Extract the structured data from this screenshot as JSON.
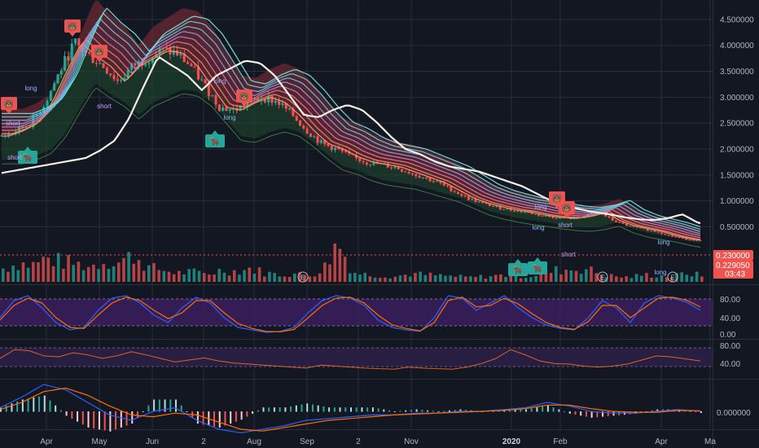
{
  "chart_data": {
    "type": "candlestick",
    "price_axis": {
      "ticks": [
        "4.500000",
        "4.000000",
        "3.500000",
        "3.000000",
        "2.500000",
        "2.000000",
        "1.500000",
        "1.000000",
        "0.500000"
      ],
      "tick_values": [
        4.5,
        4.0,
        3.5,
        3.0,
        2.5,
        2.0,
        1.5,
        1.0,
        0.5
      ],
      "ylim": [
        -0.5,
        4.75
      ]
    },
    "price_labels": {
      "last_price": "0.230000",
      "current_price": "0.229050",
      "countdown": "03:43"
    },
    "x_axis": {
      "labels": [
        "Apr",
        "May",
        "Jun",
        "2",
        "Aug",
        "Sep",
        "2",
        "Nov",
        "2020",
        "Feb",
        "Apr",
        "Ma"
      ],
      "bold_labels": [
        "2020"
      ]
    },
    "close_series": [
      2.25,
      2.35,
      2.5,
      2.9,
      3.5,
      4.05,
      3.8,
      3.6,
      3.3,
      3.6,
      3.75,
      3.9,
      3.85,
      3.6,
      3.2,
      2.8,
      2.75,
      2.9,
      3.0,
      2.9,
      2.65,
      2.35,
      2.1,
      2.0,
      1.85,
      1.75,
      1.7,
      1.65,
      1.55,
      1.45,
      1.35,
      1.2,
      1.05,
      0.95,
      0.88,
      0.82,
      0.78,
      0.72,
      0.68,
      0.66,
      0.7,
      0.78,
      0.62,
      0.52,
      0.46,
      0.4,
      0.32,
      0.26,
      0.23
    ],
    "volume_series": [
      30,
      42,
      38,
      52,
      45,
      40,
      34,
      47,
      44,
      60,
      32,
      26,
      20,
      22,
      18,
      26,
      24,
      30,
      20,
      16,
      18,
      14,
      28,
      90,
      22,
      16,
      14,
      12,
      18,
      16,
      14,
      12,
      10,
      12,
      14,
      16,
      12,
      18,
      26,
      28,
      30,
      18,
      12,
      10,
      16,
      14,
      12,
      20,
      14
    ],
    "earnings_markers": [
      "E",
      "E",
      "E"
    ],
    "tags": {
      "bear": "🐻",
      "bull": "🐂",
      "long": "long",
      "short": "short"
    },
    "stoch_axis": {
      "ticks": [
        "80.00",
        "40.00",
        "0.00"
      ]
    },
    "stoch_series": {
      "k": [
        40,
        75,
        85,
        60,
        30,
        15,
        20,
        55,
        80,
        85,
        70,
        45,
        30,
        60,
        82,
        70,
        40,
        20,
        15,
        10,
        12,
        20,
        50,
        75,
        85,
        80,
        65,
        35,
        20,
        15,
        12,
        40,
        85,
        80,
        55,
        70,
        85,
        60,
        40,
        25,
        18,
        15,
        40,
        75,
        60,
        30,
        70,
        85,
        80,
        72,
        55
      ],
      "d": [
        35,
        65,
        80,
        70,
        40,
        20,
        18,
        45,
        70,
        82,
        75,
        55,
        38,
        50,
        75,
        75,
        50,
        28,
        18,
        12,
        11,
        16,
        40,
        65,
        80,
        82,
        70,
        45,
        25,
        18,
        13,
        30,
        75,
        82,
        62,
        65,
        80,
        68,
        48,
        30,
        20,
        16,
        32,
        65,
        65,
        40,
        60,
        80,
        82,
        76,
        62
      ]
    },
    "rsi_axis": {
      "ticks": [
        "80.00",
        "40.00"
      ]
    },
    "rsi_series": [
      55,
      72,
      70,
      60,
      58,
      66,
      62,
      55,
      60,
      68,
      62,
      55,
      48,
      52,
      56,
      50,
      46,
      44,
      42,
      40,
      38,
      36,
      42,
      40,
      38,
      36,
      35,
      34,
      38,
      36,
      35,
      34,
      38,
      45,
      55,
      72,
      62,
      50,
      45,
      44,
      40,
      38,
      40,
      44,
      52,
      60,
      58,
      54,
      50
    ],
    "macd_axis": {
      "ticks": [
        "0.000000"
      ]
    },
    "macd_series": {
      "macd": [
        0.02,
        0.08,
        0.15,
        0.12,
        0.05,
        -0.02,
        -0.05,
        0.0,
        0.02,
        -0.05,
        -0.1,
        -0.12,
        -0.1,
        -0.08,
        -0.05,
        -0.04,
        -0.03,
        -0.02,
        -0.02,
        -0.01,
        -0.01,
        0.0,
        0.0,
        0.01,
        0.02,
        0.05,
        0.03,
        0.0,
        -0.01,
        -0.01,
        0.0,
        0.01,
        0.0
      ],
      "signal": [
        0.01,
        0.05,
        0.11,
        0.13,
        0.09,
        0.03,
        -0.02,
        -0.03,
        -0.01,
        -0.02,
        -0.06,
        -0.1,
        -0.11,
        -0.09,
        -0.07,
        -0.05,
        -0.04,
        -0.03,
        -0.02,
        -0.015,
        -0.01,
        -0.005,
        0.0,
        0.005,
        0.015,
        0.035,
        0.035,
        0.015,
        0.0,
        -0.005,
        -0.005,
        0.005,
        0.003
      ]
    },
    "colors": {
      "up": "#26a69a",
      "down": "#ef5350",
      "background": "#131722",
      "grid": "#2a2e39",
      "stoch_band": "#3b1f5e",
      "rsi_band": "#2a1f45",
      "cloud_bear": "#6b2a33",
      "cloud_bull": "#1f4a2e",
      "white_ma": "#f5f0e6",
      "ribbon_cool": "#5ed0e0",
      "ribbon_warm": "#f0a070",
      "price_line": "#ef5350"
    }
  }
}
